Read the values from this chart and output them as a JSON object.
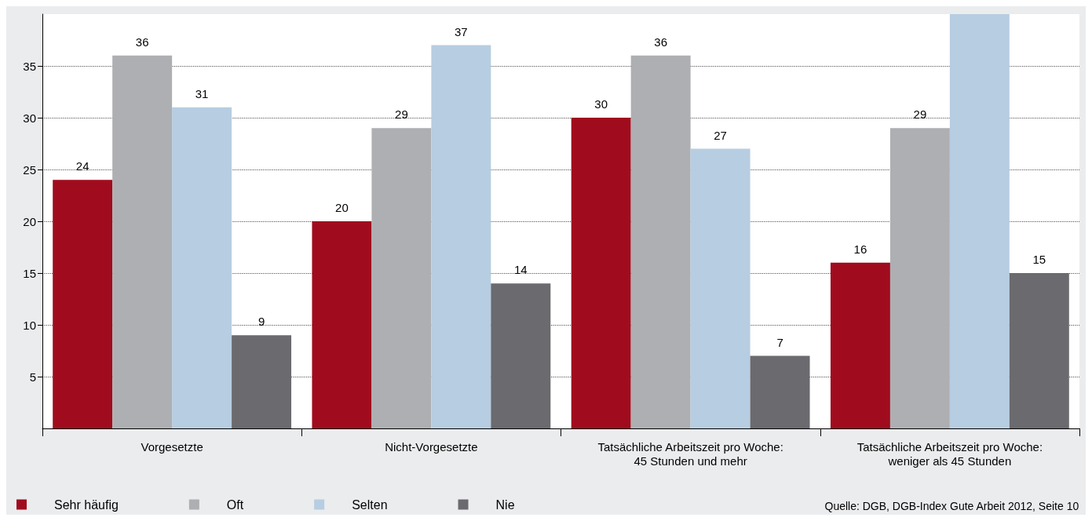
{
  "chart_data": {
    "type": "bar",
    "categories": [
      "Vorgesetzte",
      "Nicht-Vorgesetzte",
      "Tatsächliche Arbeitszeit pro Woche:\n45 Stunden und mehr",
      "Tatsächliche Arbeitszeit pro Woche:\nweniger als 45 Stunden"
    ],
    "series": [
      {
        "name": "Sehr häufig",
        "color": "#a00c1e",
        "values": [
          24,
          20,
          30,
          16
        ]
      },
      {
        "name": "Oft",
        "color": "#aeafb2",
        "values": [
          36,
          29,
          36,
          29
        ]
      },
      {
        "name": "Selten",
        "color": "#b7cde1",
        "values": [
          31,
          37,
          27,
          40
        ],
        "value_labels": [
          "31",
          "37",
          "27",
          null
        ]
      },
      {
        "name": "Nie",
        "color": "#6b6a6f",
        "values": [
          9,
          14,
          7,
          15
        ]
      }
    ],
    "ylim": [
      0,
      40
    ],
    "yticks": [
      5,
      10,
      15,
      20,
      25,
      30,
      35
    ],
    "grid": "y",
    "legend": "bottom left",
    "data_labels": true,
    "annotations": [
      "Quelle: DGB, DGB-Index Gute Arbeit 2012, Seite 10"
    ]
  }
}
